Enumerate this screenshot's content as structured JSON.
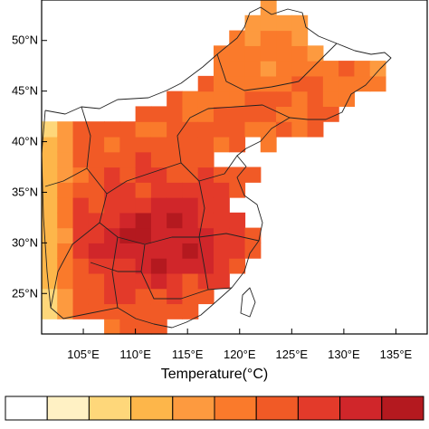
{
  "map": {
    "lat_ticks": [
      "50°N",
      "45°N",
      "40°N",
      "35°N",
      "30°N",
      "25°N"
    ],
    "lon_ticks": [
      "105°E",
      "110°E",
      "115°E",
      "120°E",
      "125°E",
      "130°E",
      "135°E"
    ],
    "xlabel": "Temperature(°C)",
    "lon_range": [
      101,
      138
    ],
    "lat_range": [
      21,
      54
    ],
    "grid_step_deg": 1.5,
    "colorbar": {
      "colors": [
        "#ffffff",
        "#fff1c4",
        "#fed77a",
        "#fdb64a",
        "#fd9a3f",
        "#fa7a2b",
        "#f15a26",
        "#e33a2a",
        "#d0262a",
        "#b4191f"
      ]
    }
  }
}
